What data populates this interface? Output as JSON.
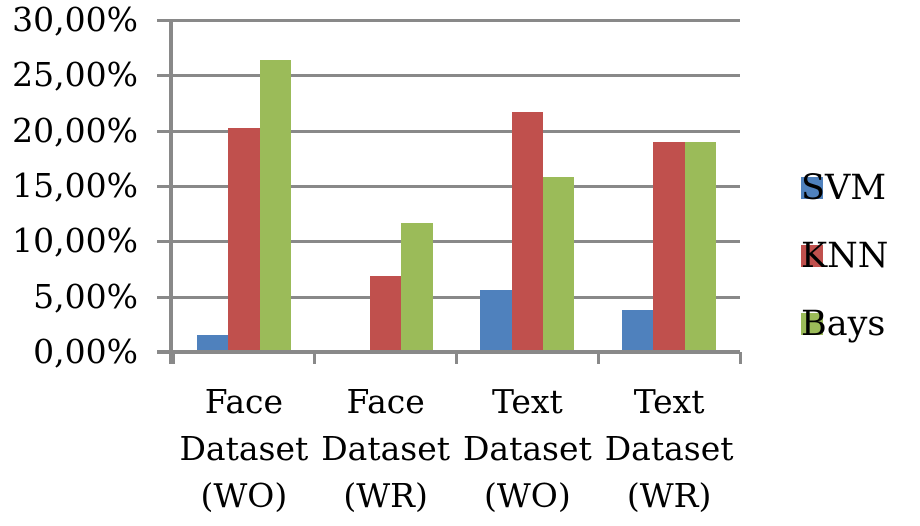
{
  "chart_data": {
    "type": "bar",
    "title": "",
    "categories": [
      {
        "label": "Face Dataset (WO)",
        "lines": [
          "Face",
          "Dataset",
          "(WO)"
        ]
      },
      {
        "label": "Face Dataset (WR)",
        "lines": [
          "Face",
          "Dataset",
          "(WR)"
        ]
      },
      {
        "label": "Text Dataset (WO)",
        "lines": [
          "Text",
          "Dataset",
          "(WO)"
        ]
      },
      {
        "label": "Text Dataset (WR)",
        "lines": [
          "Text",
          "Dataset",
          "(WR)"
        ]
      }
    ],
    "series": [
      {
        "name": "SVM",
        "color": "#4F81BD",
        "values": [
          1.5,
          0.0,
          5.6,
          3.8
        ]
      },
      {
        "name": "KNN",
        "color": "#C0504D",
        "values": [
          20.2,
          6.9,
          21.7,
          19.0
        ]
      },
      {
        "name": "Bays",
        "color": "#9BBB59",
        "values": [
          26.4,
          11.7,
          15.8,
          19.0
        ]
      }
    ],
    "y_axis": {
      "min": 0,
      "max": 30,
      "step": 5,
      "tick_labels": [
        "30,00%",
        "25,00%",
        "20,00%",
        "15,00%",
        "10,00%",
        "5,00%",
        "0,00%"
      ],
      "unit": "%"
    },
    "legend": {
      "position": "right",
      "items": [
        "SVM",
        "KNN",
        "Bays"
      ]
    },
    "grid": true,
    "gridline_color": "#898989",
    "axis_color": "#898989",
    "text_color": "#000000",
    "background": "#ffffff"
  }
}
